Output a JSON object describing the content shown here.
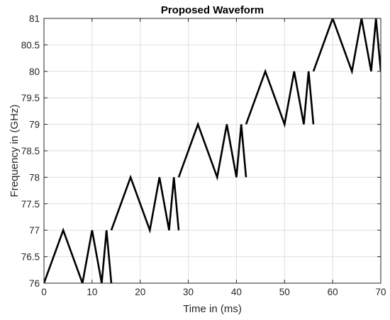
{
  "chart_data": {
    "type": "line",
    "title": "Proposed Waveform",
    "xlabel": "Time in (ms)",
    "ylabel": "Frequency in (GHz)",
    "xlim": [
      0,
      70
    ],
    "ylim": [
      76,
      81
    ],
    "xticks": [
      0,
      10,
      20,
      30,
      40,
      50,
      60,
      70
    ],
    "xtick_labels": [
      "0",
      "10",
      "20",
      "30",
      "40",
      "50",
      "60",
      "70"
    ],
    "yticks": [
      76,
      76.5,
      77,
      77.5,
      78,
      78.5,
      79,
      79.5,
      80,
      80.5,
      81
    ],
    "ytick_labels": [
      "76",
      "76.5",
      "77",
      "77.5",
      "78",
      "78.5",
      "79",
      "79.5",
      "80",
      "80.5",
      "81"
    ],
    "grid": true,
    "line_color": "#000000",
    "segments": [
      {
        "x": [
          0,
          4,
          8,
          10,
          12,
          13,
          14
        ],
        "y": [
          76,
          77,
          76,
          77,
          76,
          77,
          76
        ]
      },
      {
        "x": [
          14,
          18,
          22,
          24,
          26,
          27,
          28
        ],
        "y": [
          77,
          78,
          77,
          78,
          77,
          78,
          77
        ]
      },
      {
        "x": [
          28,
          32,
          36,
          38,
          40,
          41,
          42
        ],
        "y": [
          78,
          79,
          78,
          79,
          78,
          79,
          78
        ]
      },
      {
        "x": [
          42,
          46,
          50,
          52,
          54,
          55,
          56
        ],
        "y": [
          79,
          80,
          79,
          80,
          79,
          80,
          79
        ]
      },
      {
        "x": [
          56,
          60,
          64,
          66,
          68,
          69,
          70
        ],
        "y": [
          80,
          81,
          80,
          81,
          80,
          81,
          80
        ]
      }
    ]
  }
}
